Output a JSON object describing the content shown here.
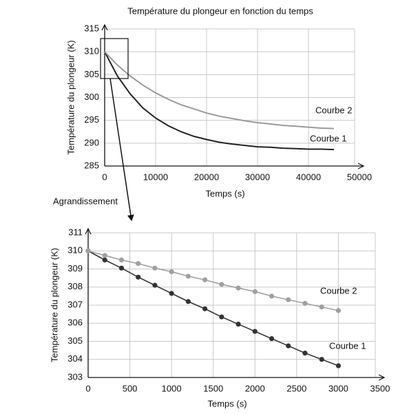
{
  "chart_data": [
    {
      "type": "line",
      "title": "Température du plongeur en fonction du temps",
      "xlabel": "Temps (s)",
      "ylabel": "Température du plongeur (K)",
      "annotation": "Agrandissement",
      "x": [
        0,
        2500,
        5000,
        7500,
        10000,
        12500,
        15000,
        17500,
        20000,
        22500,
        25000,
        27500,
        30000,
        32500,
        35000,
        37500,
        40000,
        42500,
        45000
      ],
      "series": [
        {
          "name": "Courbe 1",
          "color": "#222222",
          "values": [
            310,
            304.7,
            300.8,
            297.7,
            295.5,
            293.8,
            292.5,
            291.5,
            290.8,
            290.2,
            289.8,
            289.5,
            289.2,
            289.1,
            288.9,
            288.8,
            288.7,
            288.7,
            288.6
          ]
        },
        {
          "name": "Courbe 2",
          "color": "#9a9a9a",
          "values": [
            310,
            307.1,
            304.7,
            302.7,
            301.0,
            299.6,
            298.4,
            297.5,
            296.6,
            295.9,
            295.4,
            294.9,
            294.5,
            294.2,
            293.9,
            293.7,
            293.5,
            293.3,
            293.2
          ]
        }
      ],
      "xlim": [
        0,
        50000
      ],
      "xticks": [
        0,
        10000,
        20000,
        30000,
        40000,
        50000
      ],
      "ylim": [
        285,
        315
      ],
      "yticks": [
        285,
        290,
        295,
        300,
        305,
        310,
        315
      ],
      "grid": true,
      "markers": false
    },
    {
      "type": "line",
      "xlabel": "Temps (s)",
      "ylabel": "Température du plongeur (K)",
      "x": [
        0,
        200,
        400,
        600,
        800,
        1000,
        1200,
        1400,
        1600,
        1800,
        2000,
        2200,
        2400,
        2600,
        2800,
        3000
      ],
      "series": [
        {
          "name": "Courbe 1",
          "color": "#333333",
          "values": [
            310,
            309.5,
            309.05,
            308.55,
            308.1,
            307.65,
            307.2,
            306.8,
            306.35,
            305.95,
            305.55,
            305.15,
            304.75,
            304.35,
            304.0,
            303.65
          ]
        },
        {
          "name": "Courbe 2",
          "color": "#a0a0a0",
          "values": [
            310,
            309.75,
            309.5,
            309.3,
            309.05,
            308.85,
            308.6,
            308.4,
            308.15,
            307.95,
            307.75,
            307.5,
            307.3,
            307.1,
            306.9,
            306.7
          ]
        }
      ],
      "xlim": [
        0,
        3500
      ],
      "xticks": [
        0,
        500,
        1000,
        1500,
        2000,
        2500,
        3000,
        3500
      ],
      "ylim": [
        303,
        311
      ],
      "yticks": [
        303,
        304,
        305,
        306,
        307,
        308,
        309,
        310,
        311
      ],
      "grid": true,
      "markers": true
    }
  ]
}
